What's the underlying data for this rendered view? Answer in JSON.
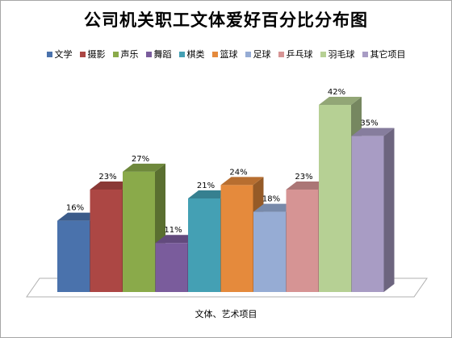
{
  "chart_data": {
    "type": "bar",
    "title": "公司机关职工文体爱好百分比分布图",
    "xlabel": "文体、艺术项目",
    "ylabel": "",
    "ylim": [
      0,
      42
    ],
    "value_suffix": "%",
    "legend_position": "top",
    "grid": false,
    "categories": [
      "文学",
      "摄影",
      "声乐",
      "舞蹈",
      "棋类",
      "篮球",
      "足球",
      "乒乓球",
      "羽毛球",
      "其它项目"
    ],
    "values": [
      16,
      23,
      27,
      11,
      21,
      24,
      18,
      23,
      42,
      35
    ],
    "colors": [
      "#4a72ac",
      "#ac4744",
      "#8aaa4a",
      "#7a5c9c",
      "#44a0b4",
      "#e58a3c",
      "#96acd4",
      "#d69494",
      "#b6d094",
      "#a89cc4"
    ]
  }
}
